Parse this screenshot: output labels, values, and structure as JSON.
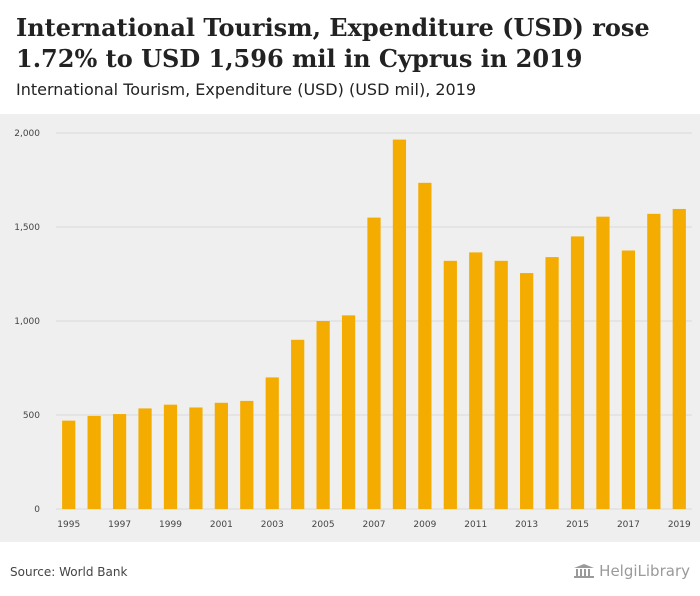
{
  "header": {
    "title": "International Tourism, Expenditure (USD) rose 1.72% to USD 1,596 mil in Cyprus in 2019",
    "subtitle": "International Tourism, Expenditure (USD) (USD mil), 2019"
  },
  "footer": {
    "source": "Source: World Bank",
    "logo_text": "HelgiLibrary"
  },
  "colors": {
    "bar": "#f5ac00",
    "grid": "#d9d9d9",
    "background": "#efefef"
  },
  "chart_data": {
    "type": "bar",
    "title": "International Tourism, Expenditure (USD) rose 1.72% to USD 1,596 mil in Cyprus in 2019",
    "subtitle": "International Tourism, Expenditure (USD) (USD mil), 2019",
    "xlabel": "",
    "ylabel": "",
    "ylim": [
      0,
      2000
    ],
    "yticks": [
      0,
      500,
      1000,
      1500,
      2000
    ],
    "ytick_labels": [
      "0",
      "500",
      "1,000",
      "1,500",
      "2,000"
    ],
    "grid": true,
    "categories": [
      "1995",
      "1996",
      "1997",
      "1998",
      "1999",
      "2000",
      "2001",
      "2002",
      "2003",
      "2004",
      "2005",
      "2006",
      "2007",
      "2008",
      "2009",
      "2010",
      "2011",
      "2012",
      "2013",
      "2014",
      "2015",
      "2016",
      "2017",
      "2018",
      "2019"
    ],
    "xtick_labels": [
      "1995",
      "1997",
      "1999",
      "2001",
      "2003",
      "2005",
      "2007",
      "2009",
      "2011",
      "2013",
      "2015",
      "2017",
      "2019"
    ],
    "values": [
      470,
      495,
      505,
      535,
      555,
      540,
      565,
      575,
      700,
      900,
      1000,
      1030,
      1550,
      1965,
      1735,
      1320,
      1365,
      1320,
      1255,
      1340,
      1450,
      1555,
      1375,
      1570,
      1596
    ]
  }
}
